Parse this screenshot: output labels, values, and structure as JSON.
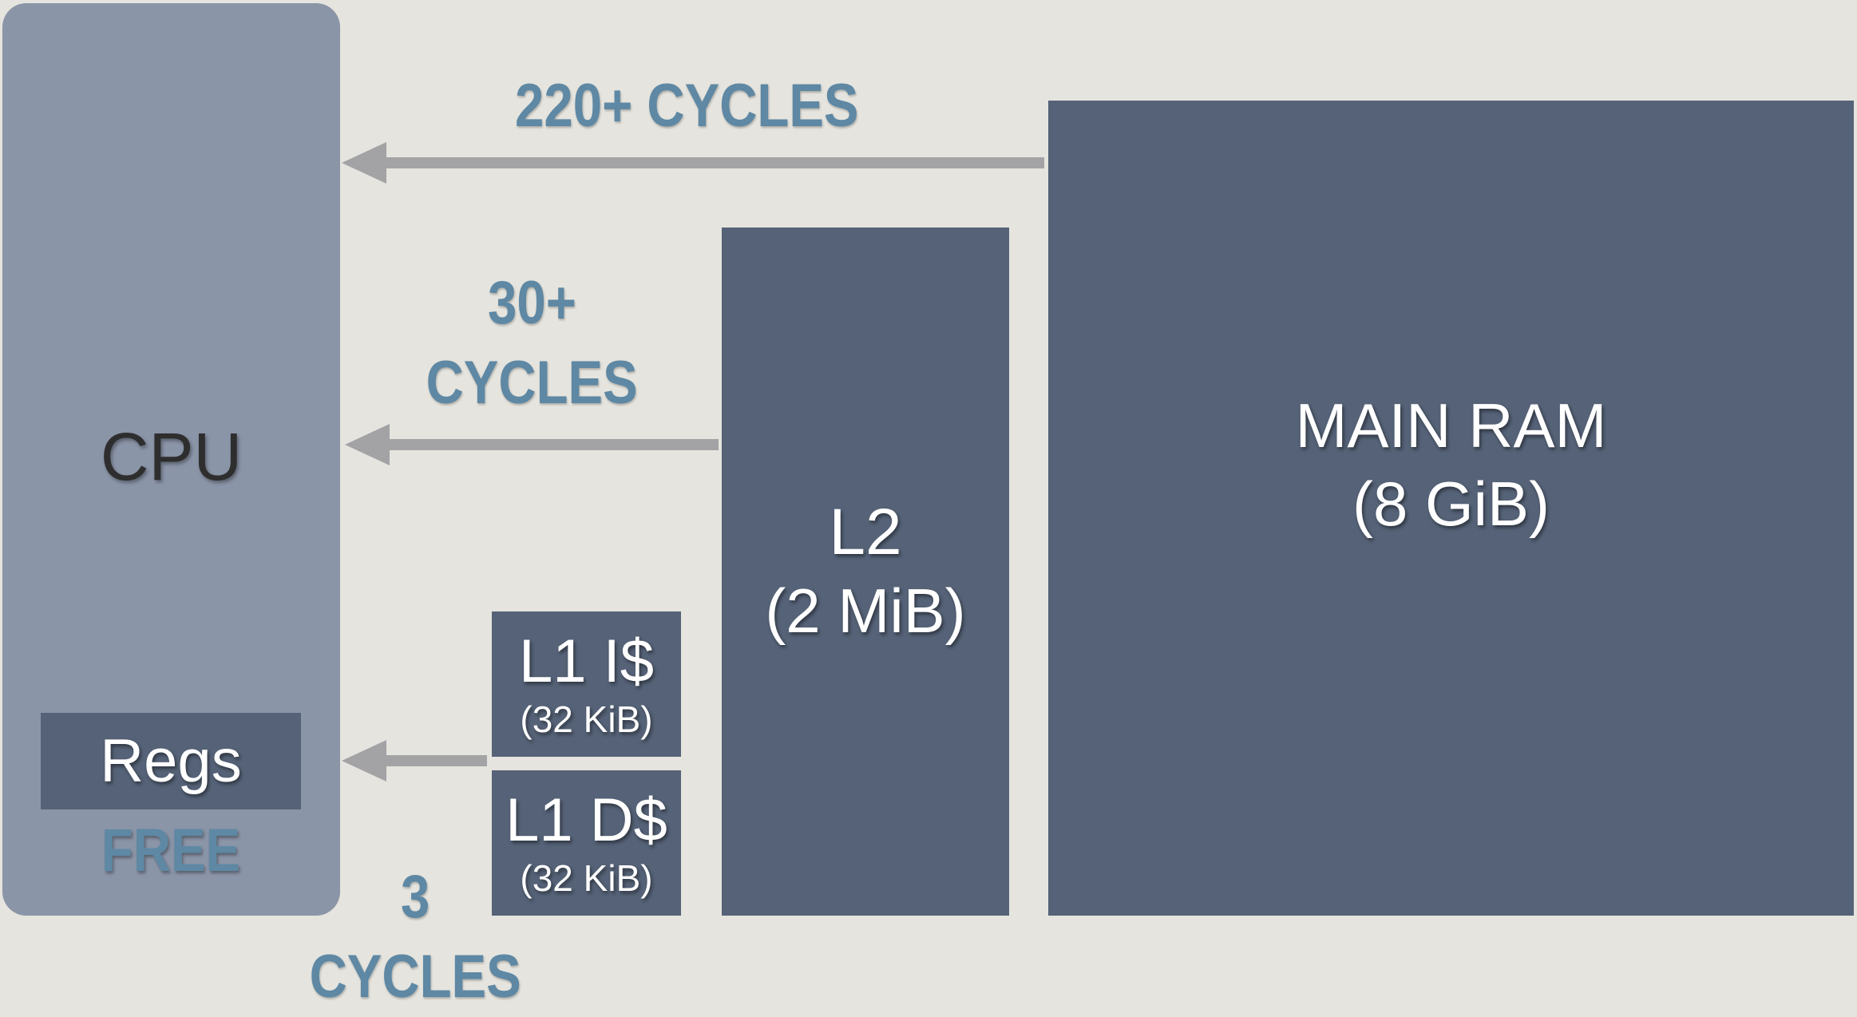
{
  "cpu": {
    "label": "CPU"
  },
  "registers": {
    "label": "Regs",
    "latency": "FREE"
  },
  "l1_instruction_cache": {
    "name": "L1 I$",
    "size": "(32 KiB)"
  },
  "l1_data_cache": {
    "name": "L1 D$",
    "size": "(32 KiB)"
  },
  "l2_cache": {
    "name": "L2",
    "size": "(2 MiB)"
  },
  "main_ram": {
    "name": "MAIN RAM",
    "size": "(8 GiB)"
  },
  "latency_labels": {
    "ram": "220+ CYCLES",
    "l2_line1": "30+",
    "l2_line2": "CYCLES",
    "l1_line1": "3",
    "l1_line2": "CYCLES"
  },
  "colors": {
    "background": "#e5e4de",
    "cpu": "#8b95a8",
    "memory_block": "#556277",
    "latency_text": "#5e88a4",
    "arrow": "#a3a3a6"
  }
}
